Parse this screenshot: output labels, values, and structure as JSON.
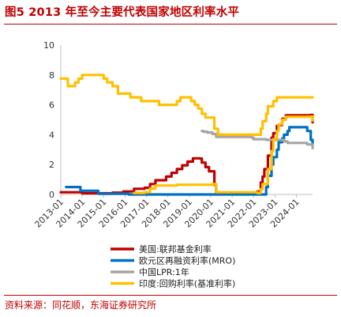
{
  "header": {
    "title": "图5  2013 年至今主要代表国家地区利率水平"
  },
  "footer": {
    "source": "资料来源：同花顺，东海证券研究所"
  },
  "chart_data": {
    "type": "line",
    "title": "图5  2013 年至今主要代表国家地区利率水平",
    "xlabel": "",
    "ylabel": "",
    "ylim": [
      0,
      10
    ],
    "y_ticks": [
      0,
      2,
      4,
      6,
      8,
      10
    ],
    "x_ticks": [
      "2013-01",
      "2014-01",
      "2015-01",
      "2016-01",
      "2017-01",
      "2018-01",
      "2019-01",
      "2020-01",
      "2021-01",
      "2022-01",
      "2023-01",
      "2024-01"
    ],
    "xlim": [
      "2013-01",
      "2024-10"
    ],
    "grid": false,
    "legend_position": "bottom",
    "series": [
      {
        "name": "美国:联邦基金利率",
        "color": "#c00000",
        "points": [
          [
            "2013-01",
            0.15
          ],
          [
            "2014-01",
            0.08
          ],
          [
            "2015-06",
            0.12
          ],
          [
            "2015-12",
            0.2
          ],
          [
            "2016-06",
            0.38
          ],
          [
            "2016-12",
            0.45
          ],
          [
            "2017-03",
            0.7
          ],
          [
            "2017-06",
            0.95
          ],
          [
            "2017-12",
            1.2
          ],
          [
            "2018-03",
            1.45
          ],
          [
            "2018-06",
            1.7
          ],
          [
            "2018-09",
            1.95
          ],
          [
            "2018-12",
            2.2
          ],
          [
            "2019-03",
            2.42
          ],
          [
            "2019-07",
            2.4
          ],
          [
            "2019-08",
            2.13
          ],
          [
            "2019-10",
            1.83
          ],
          [
            "2019-12",
            1.55
          ],
          [
            "2020-03",
            0.65
          ],
          [
            "2020-04",
            0.06
          ],
          [
            "2021-06",
            0.08
          ],
          [
            "2022-02",
            0.08
          ],
          [
            "2022-03",
            0.2
          ],
          [
            "2022-05",
            0.8
          ],
          [
            "2022-06",
            1.2
          ],
          [
            "2022-07",
            1.7
          ],
          [
            "2022-09",
            2.6
          ],
          [
            "2022-11",
            3.8
          ],
          [
            "2022-12",
            4.1
          ],
          [
            "2023-02",
            4.58
          ],
          [
            "2023-03",
            4.65
          ],
          [
            "2023-05",
            5.07
          ],
          [
            "2023-07",
            5.3
          ],
          [
            "2024-09",
            5.33
          ],
          [
            "2024-10",
            4.83
          ]
        ]
      },
      {
        "name": "欧元区再融资利率(MRO)",
        "color": "#0070c0",
        "points": [
          [
            "2013-04",
            0.5
          ],
          [
            "2013-11",
            0.5
          ],
          [
            "2013-12",
            0.25
          ],
          [
            "2014-08",
            0.25
          ],
          [
            "2014-10",
            0.05
          ],
          [
            "2016-02",
            0.05
          ],
          [
            "2016-03",
            0.0
          ],
          [
            "2022-07",
            0.0
          ],
          [
            "2022-08",
            0.5
          ],
          [
            "2022-09",
            1.25
          ],
          [
            "2022-11",
            2.0
          ],
          [
            "2022-12",
            2.5
          ],
          [
            "2023-02",
            3.0
          ],
          [
            "2023-03",
            3.5
          ],
          [
            "2023-05",
            3.75
          ],
          [
            "2023-06",
            4.0
          ],
          [
            "2023-08",
            4.25
          ],
          [
            "2023-09",
            4.5
          ],
          [
            "2024-06",
            4.5
          ],
          [
            "2024-07",
            4.25
          ],
          [
            "2024-09",
            3.65
          ],
          [
            "2024-10",
            3.4
          ]
        ]
      },
      {
        "name": "中国LPR:1年",
        "color": "#a5a5a5",
        "points": [
          [
            "2019-08",
            4.25
          ],
          [
            "2019-09",
            4.2
          ],
          [
            "2019-11",
            4.15
          ],
          [
            "2020-02",
            4.05
          ],
          [
            "2020-04",
            3.85
          ],
          [
            "2021-12",
            3.8
          ],
          [
            "2022-01",
            3.7
          ],
          [
            "2022-08",
            3.65
          ],
          [
            "2023-06",
            3.55
          ],
          [
            "2023-08",
            3.45
          ],
          [
            "2024-06",
            3.45
          ],
          [
            "2024-07",
            3.35
          ],
          [
            "2024-10",
            3.1
          ]
        ]
      },
      {
        "name": "印度:回购利率(基准利率)",
        "color": "#ffc000",
        "points": [
          [
            "2013-01",
            7.75
          ],
          [
            "2013-05",
            7.25
          ],
          [
            "2013-09",
            7.5
          ],
          [
            "2013-11",
            7.75
          ],
          [
            "2014-01",
            8.0
          ],
          [
            "2015-01",
            7.75
          ],
          [
            "2015-03",
            7.5
          ],
          [
            "2015-06",
            7.25
          ],
          [
            "2015-09",
            6.75
          ],
          [
            "2016-04",
            6.5
          ],
          [
            "2016-10",
            6.25
          ],
          [
            "2017-08",
            6.0
          ],
          [
            "2018-06",
            6.25
          ],
          [
            "2018-08",
            6.5
          ],
          [
            "2019-02",
            6.25
          ],
          [
            "2019-04",
            6.0
          ],
          [
            "2019-06",
            5.75
          ],
          [
            "2019-08",
            5.4
          ],
          [
            "2019-10",
            5.15
          ],
          [
            "2020-03",
            4.4
          ],
          [
            "2020-05",
            4.0
          ],
          [
            "2022-04",
            4.0
          ],
          [
            "2022-05",
            4.4
          ],
          [
            "2022-06",
            4.9
          ],
          [
            "2022-08",
            5.4
          ],
          [
            "2022-09",
            5.9
          ],
          [
            "2022-12",
            6.25
          ],
          [
            "2023-02",
            6.5
          ],
          [
            "2024-10",
            6.5
          ]
        ]
      },
      {
        "name": "",
        "legend": false,
        "color": "#ffc000",
        "points": [
          [
            "2016-06",
            0.1
          ],
          [
            "2016-12",
            0.15
          ],
          [
            "2017-03",
            0.4
          ],
          [
            "2017-06",
            0.6
          ],
          [
            "2017-12",
            0.6
          ],
          [
            "2018-06",
            0.65
          ],
          [
            "2020-02",
            0.7
          ],
          [
            "2020-04",
            0.15
          ],
          [
            "2022-03",
            0.1
          ],
          [
            "2022-05",
            0.35
          ],
          [
            "2022-06",
            0.7
          ],
          [
            "2022-09",
            1.7
          ],
          [
            "2022-11",
            2.9
          ],
          [
            "2022-12",
            3.7
          ],
          [
            "2023-02",
            4.25
          ],
          [
            "2023-03",
            4.7
          ],
          [
            "2023-05",
            5.0
          ],
          [
            "2023-07",
            5.2
          ],
          [
            "2024-09",
            5.22
          ],
          [
            "2024-10",
            4.95
          ]
        ]
      }
    ]
  }
}
